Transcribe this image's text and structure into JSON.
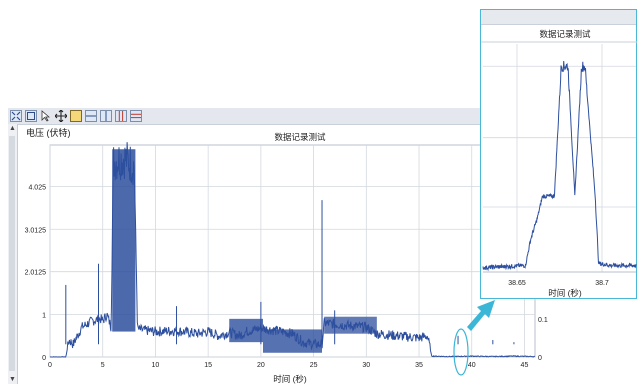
{
  "main_chart": {
    "title": "数据记录测试",
    "ylabel": "电压 (伏特)",
    "xlabel": "时间 (秒)",
    "y_ticks": [
      "4.025",
      "3.0125",
      "2.0125",
      "1",
      "0"
    ],
    "x_ticks": [
      "0",
      "5",
      "10",
      "15",
      "20",
      "25",
      "30",
      "35",
      "40",
      "45"
    ],
    "right_ticks": [
      "0.1",
      "0"
    ],
    "series_color": "#2d4f9e"
  },
  "inset_chart": {
    "title": "数据记录测试",
    "x_ticks": [
      "38.65",
      "38.7"
    ],
    "xlabel": "时间 (秒)"
  },
  "toolbar": {
    "icons": [
      "zoom-fit-icon",
      "zoom-box-icon",
      "pointer-icon",
      "pan-icon",
      "layout-single-icon",
      "layout-horizontal-icon",
      "layout-vertical-icon",
      "layout-columns-icon",
      "layout-rows-icon"
    ]
  },
  "callout": {
    "color": "#3ab6d6"
  },
  "chart_data": [
    {
      "type": "line",
      "title": "数据记录测试",
      "xlabel": "时间 (秒)",
      "ylabel": "电压 (伏特)",
      "xlim": [
        0,
        46
      ],
      "ylim": [
        0,
        5
      ],
      "series": [
        {
          "x": [
            0,
            1.5,
            1.8,
            2.2,
            3,
            4,
            4.8,
            5,
            5.4,
            5.8,
            6,
            7,
            8,
            8.3,
            10,
            12,
            14,
            15,
            16,
            17,
            18,
            18.6,
            20,
            22,
            23,
            24,
            25,
            25.8,
            26,
            28,
            30,
            31,
            33,
            35,
            35.8,
            36.2,
            38,
            40,
            42,
            44,
            46
          ],
          "y": [
            0,
            0,
            0.4,
            0.3,
            0.7,
            0.85,
            0.9,
            0.85,
            1.0,
            0.7,
            4.6,
            4.7,
            4.5,
            0.65,
            0.6,
            0.62,
            0.55,
            0.6,
            0.5,
            0.58,
            0.5,
            0.6,
            0.68,
            0.6,
            0.55,
            0.35,
            0.3,
            0.3,
            0.8,
            0.75,
            0.7,
            0.55,
            0.5,
            0.45,
            0.5,
            0.02,
            0.01,
            0.02,
            0.01,
            0.02,
            0.01
          ]
        }
      ]
    },
    {
      "type": "line",
      "title": "数据记录测试",
      "xlabel": "时间 (秒)",
      "xlim": [
        38.63,
        38.72
      ],
      "series": [
        {
          "x": [
            38.63,
            38.655,
            38.658,
            38.662,
            38.665,
            38.668,
            38.672,
            38.676,
            38.68,
            38.684,
            38.688,
            38.69,
            38.696,
            38.698,
            38.705,
            38.72
          ],
          "y": [
            0.02,
            0.03,
            0.15,
            0.25,
            0.35,
            0.35,
            0.35,
            0.95,
            0.95,
            0.35,
            0.95,
            0.95,
            0.35,
            0.04,
            0.03,
            0.03
          ]
        }
      ]
    }
  ]
}
